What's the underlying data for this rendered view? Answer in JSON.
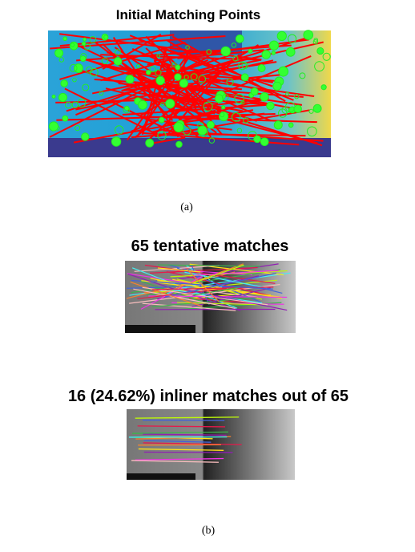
{
  "figure_a": {
    "title": "Initial Matching Points",
    "caption": "(a)"
  },
  "figure_b": {
    "panels": [
      {
        "title": "65 tentative matches"
      },
      {
        "title": "16 (24.62%) inliner matches out of 65"
      }
    ],
    "caption": "(b)"
  }
}
